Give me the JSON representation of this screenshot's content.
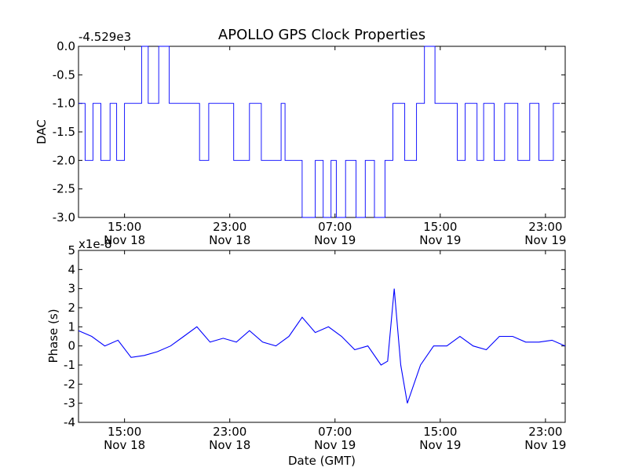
{
  "chart_data": [
    {
      "type": "line",
      "title": "APOLLO GPS Clock Properties",
      "ylabel": "DAC",
      "xlabel": "",
      "offset_label": "-4.529e3",
      "ylim": [
        -3.0,
        0.0
      ],
      "yticks": [
        "0.0",
        "-0.5",
        "-1.0",
        "-1.5",
        "-2.0",
        "-2.5",
        "-3.0"
      ],
      "xlim": [
        "Nov 18 11:30",
        "Nov 20 00:30"
      ],
      "xticks": [
        {
          "time": "15:00",
          "date": "Nov 18"
        },
        {
          "time": "23:00",
          "date": "Nov 18"
        },
        {
          "time": "07:00",
          "date": "Nov 19"
        },
        {
          "time": "15:00",
          "date": "Nov 19"
        },
        {
          "time": "23:00",
          "date": "Nov 19"
        }
      ],
      "grid": false,
      "series_color": "#0000ff",
      "series": [
        {
          "x_hours_from_nov18_0000": [
            11.5,
            12.0,
            12.6,
            13.2,
            13.9,
            14.4,
            15.0,
            16.3,
            16.8,
            17.6,
            18.4,
            19.6,
            20.7,
            21.4,
            22.8,
            23.3,
            24.5,
            25.4,
            26.9,
            27.2,
            27.7,
            28.5,
            29.5,
            30.1,
            30.7,
            31.1,
            31.8,
            32.6,
            33.3,
            34.0,
            34.8,
            35.4,
            36.3,
            37.2,
            37.8,
            38.6,
            38.9,
            39.6,
            40.3,
            40.9,
            41.8,
            42.3,
            43.1,
            43.9,
            44.9,
            45.8,
            46.5,
            47.6,
            48.1
          ],
          "values": [
            -1.0,
            -2.0,
            -1.0,
            -2.0,
            -1.0,
            -2.0,
            -1.0,
            0.0,
            -1.0,
            0.0,
            -1.0,
            -1.0,
            -2.0,
            -1.0,
            -1.0,
            -2.0,
            -1.0,
            -2.0,
            -1.0,
            -2.0,
            -2.0,
            -3.0,
            -2.0,
            -3.0,
            -2.0,
            -3.0,
            -2.0,
            -3.0,
            -2.0,
            -3.0,
            -2.0,
            -1.0,
            -2.0,
            -1.0,
            0.0,
            -1.0,
            -1.0,
            -1.0,
            -2.0,
            -1.0,
            -2.0,
            -1.0,
            -2.0,
            -1.0,
            -2.0,
            -1.0,
            -2.0,
            -1.0,
            -1.0
          ]
        }
      ]
    },
    {
      "type": "line",
      "title": "",
      "ylabel": "Phase (s)",
      "xlabel": "Date (GMT)",
      "offset_label": "x1e-8",
      "ylim": [
        -4,
        5
      ],
      "yticks": [
        "5",
        "4",
        "3",
        "2",
        "1",
        "0",
        "-1",
        "-2",
        "-3",
        "-4"
      ],
      "xlim": [
        "Nov 18 11:30",
        "Nov 20 00:30"
      ],
      "xticks": [
        {
          "time": "15:00",
          "date": "Nov 18"
        },
        {
          "time": "23:00",
          "date": "Nov 18"
        },
        {
          "time": "07:00",
          "date": "Nov 19"
        },
        {
          "time": "15:00",
          "date": "Nov 19"
        },
        {
          "time": "23:00",
          "date": "Nov 19"
        }
      ],
      "grid": false,
      "series_color": "#0000ff",
      "series": [
        {
          "x_hours_from_nov18_0000": [
            11.5,
            12.5,
            13.5,
            14.5,
            15.5,
            16.5,
            17.5,
            18.5,
            19.5,
            20.5,
            21.5,
            22.5,
            23.5,
            24.5,
            25.5,
            26.5,
            27.5,
            28.5,
            29.5,
            30.5,
            31.5,
            32.5,
            33.5,
            34.5,
            35.0,
            35.5,
            36.0,
            36.5,
            37.5,
            38.5,
            39.5,
            40.5,
            41.5,
            42.5,
            43.5,
            44.5,
            45.5,
            46.5,
            47.5,
            48.5
          ],
          "values": [
            0.8,
            0.5,
            0.0,
            0.3,
            -0.6,
            -0.5,
            -0.3,
            0.0,
            0.5,
            1.0,
            0.2,
            0.4,
            0.2,
            0.8,
            0.2,
            0.0,
            0.5,
            1.5,
            0.7,
            1.0,
            0.5,
            -0.2,
            0.0,
            -1.0,
            -0.8,
            3.0,
            -1.0,
            -3.0,
            -1.0,
            0.0,
            0.0,
            0.5,
            0.0,
            -0.2,
            0.5,
            0.5,
            0.2,
            0.2,
            0.3,
            0.0
          ]
        }
      ]
    }
  ]
}
